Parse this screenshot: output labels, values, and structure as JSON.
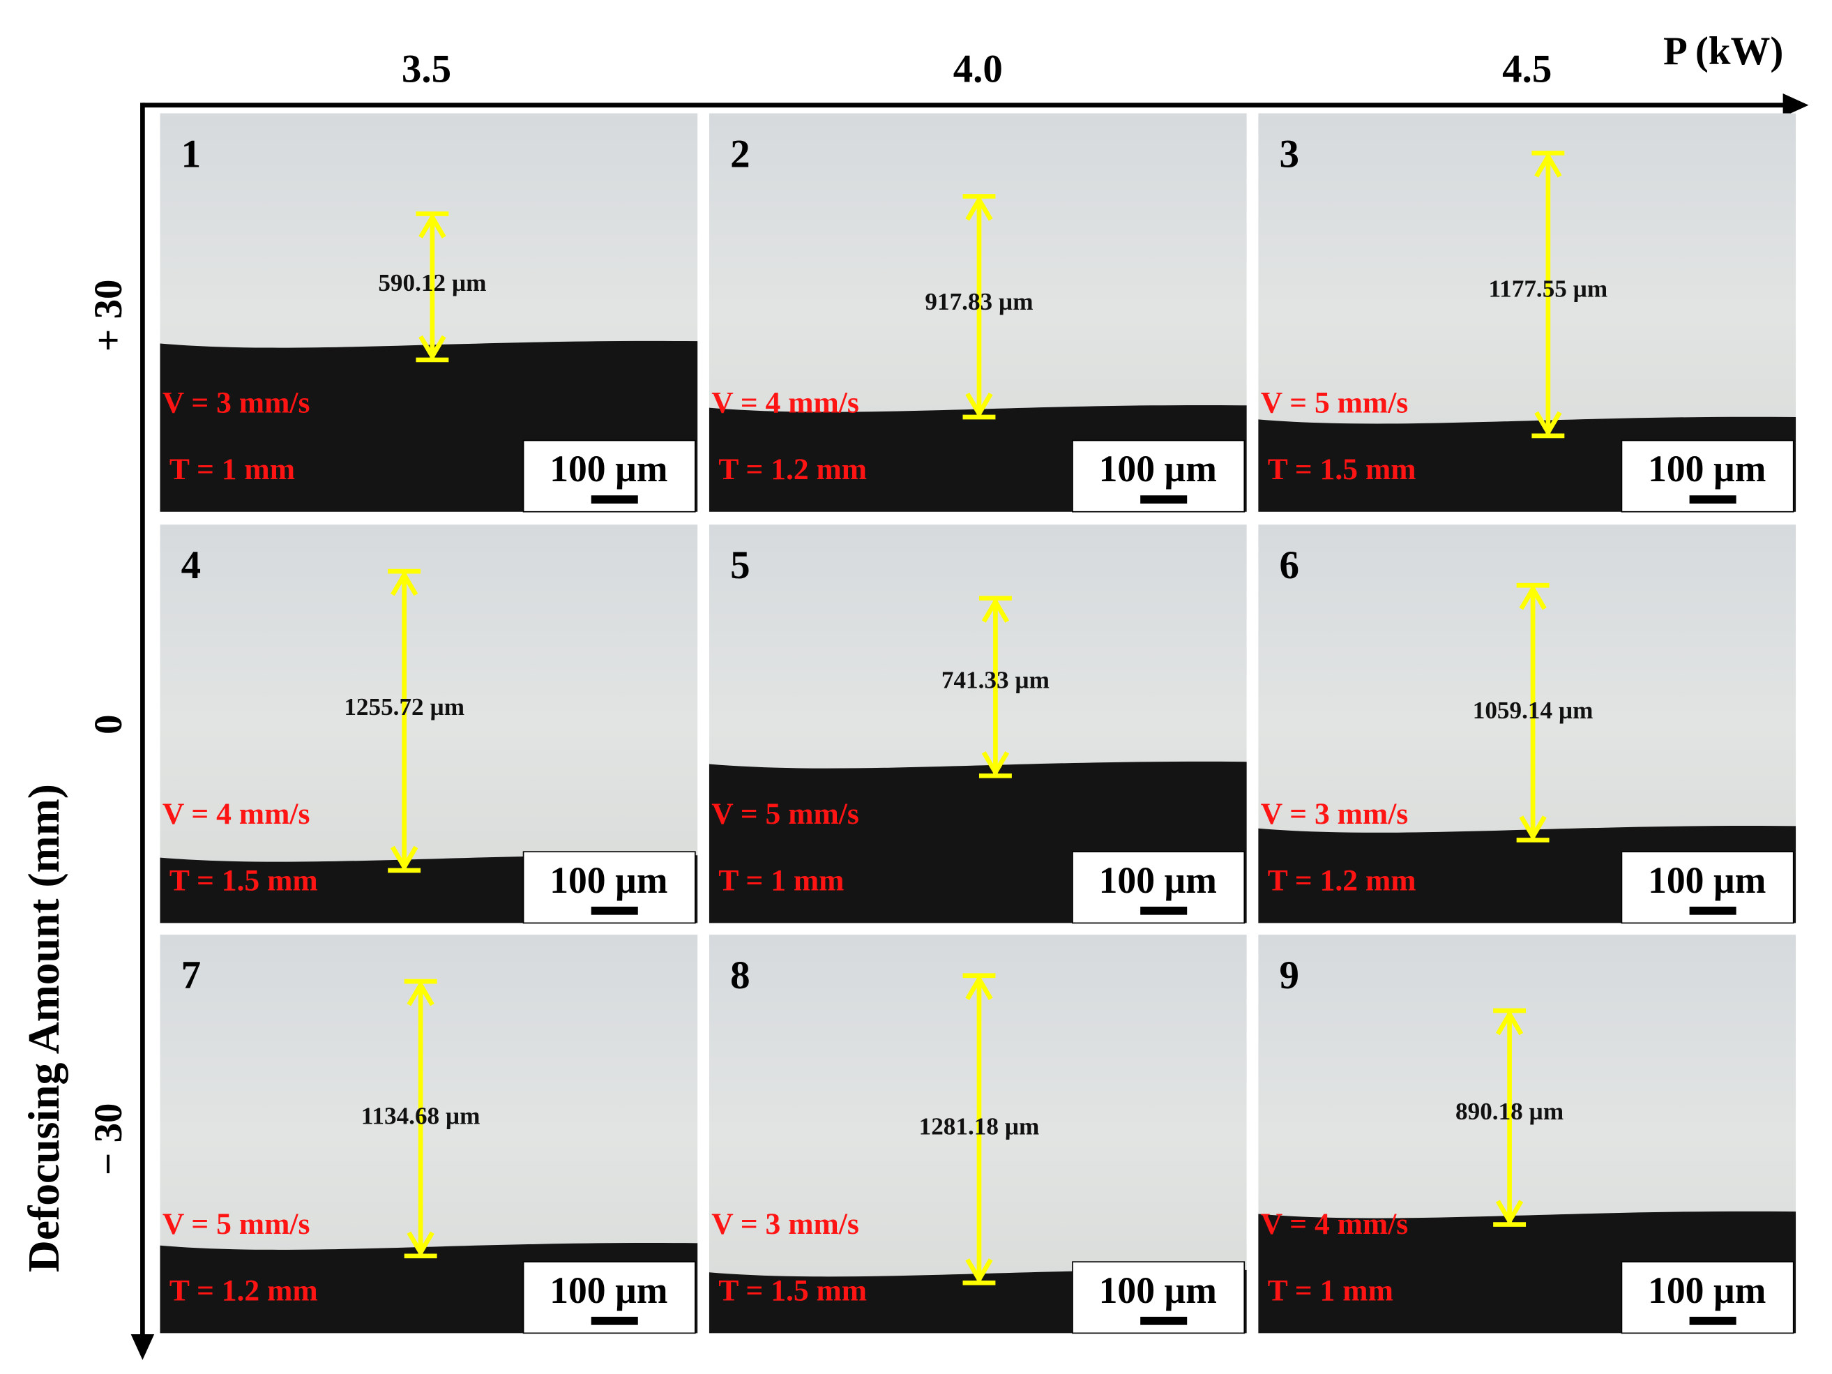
{
  "axes": {
    "x_label": "P (kW)",
    "y_label": "Defocusing Amount (mm)",
    "columns": [
      "3.5",
      "4.0",
      "4.5"
    ],
    "rows": [
      "+ 30",
      "0",
      "− 30"
    ]
  },
  "panels": [
    {
      "number": "1",
      "thickness": "590.12 µm",
      "speed": "V = 3 mm/s",
      "depth": "T = 1 mm",
      "scale_bar": "100 µm"
    },
    {
      "number": "2",
      "thickness": "917.83 µm",
      "speed": "V = 4 mm/s",
      "depth": "T = 1.2 mm",
      "scale_bar": "100 µm"
    },
    {
      "number": "3",
      "thickness": "1177.55 µm",
      "speed": "V = 5 mm/s",
      "depth": "T = 1.5 mm",
      "scale_bar": "100 µm"
    },
    {
      "number": "4",
      "thickness": "1255.72 µm",
      "speed": "V = 4 mm/s",
      "depth": "T = 1.5 mm",
      "scale_bar": "100 µm"
    },
    {
      "number": "5",
      "thickness": "741.33 µm",
      "speed": "V = 5 mm/s",
      "depth": "T = 1 mm",
      "scale_bar": "100 µm"
    },
    {
      "number": "6",
      "thickness": "1059.14 µm",
      "speed": "V = 3 mm/s",
      "depth": "T = 1.2 mm",
      "scale_bar": "100 µm"
    },
    {
      "number": "7",
      "thickness": "1134.68 µm",
      "speed": "V = 5 mm/s",
      "depth": "T = 1.2 mm",
      "scale_bar": "100 µm"
    },
    {
      "number": "8",
      "thickness": "1281.18 µm",
      "speed": "V = 3 mm/s",
      "depth": "T = 1.5 mm",
      "scale_bar": "100 µm"
    },
    {
      "number": "9",
      "thickness": "890.18 µm",
      "speed": "V = 4 mm/s",
      "depth": "T = 1 mm",
      "scale_bar": "100 µm"
    }
  ]
}
